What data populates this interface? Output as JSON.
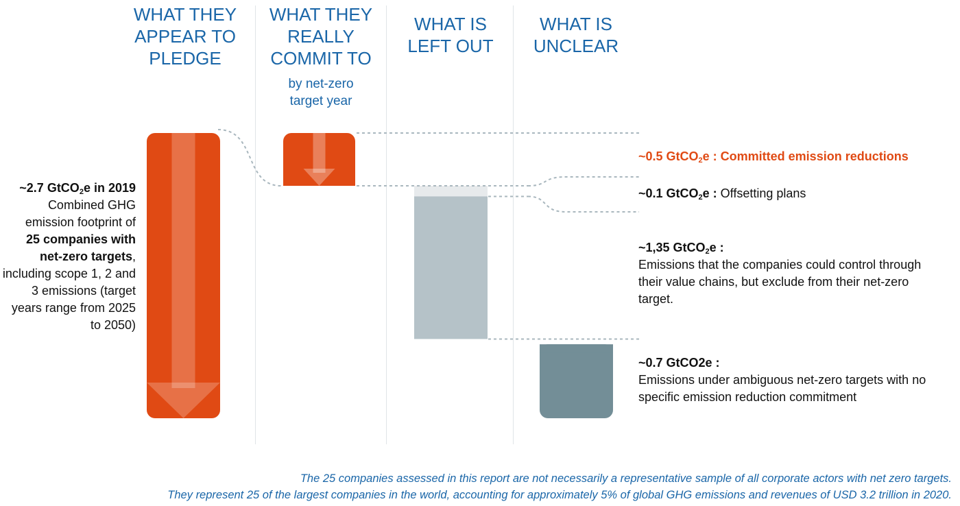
{
  "headers": [
    {
      "title": "WHAT THEY\nAPPEAR TO\nPLEDGE"
    },
    {
      "title": "WHAT THEY\nREALLY\nCOMMIT TO",
      "sub": "by net-zero\ntarget year"
    },
    {
      "title": "WHAT IS\nLEFT OUT"
    },
    {
      "title": "WHAT IS\nUNCLEAR"
    }
  ],
  "left_annotation": {
    "value": "~2.7 GtCO",
    "value_sub": "2",
    "value_rest": "e in 2019",
    "line1": "Combined GHG emission footprint of",
    "bold": "25 companies with net-zero targets",
    "line2": ", including scope 1, 2 and 3 emissions (target years range from 2025 to 2050)"
  },
  "labels": [
    {
      "value": "~0.5 GtCO",
      "sub": "2",
      "value_rest": "e : Committed emission reductions",
      "desc": ""
    },
    {
      "value": "~0.1 GtCO",
      "sub": "2",
      "value_rest": "e :",
      "desc": " Offsetting plans"
    },
    {
      "value": "~1,35 GtCO",
      "sub": "2",
      "value_rest": "e :",
      "desc": "Emissions that the companies could control through their value chains, but exclude from their net-zero target."
    },
    {
      "value": "~0.7 GtCO2e :",
      "sub": "",
      "value_rest": "",
      "desc": "Emissions under ambiguous net-zero targets with no specific emission reduction commitment"
    }
  ],
  "footnote": {
    "line1": "The 25 companies assessed in this report are not necessarily a representative sample of all corporate actors with net zero targets.",
    "line2": "They represent 25 of the largest companies in the world, accounting for approximately 5% of global GHG emissions and revenues of USD 3.2 trillion in 2020."
  },
  "colors": {
    "pledge": "#e04a14",
    "commit": "#e04a14",
    "offset": "#e7eaec",
    "left_out": "#b5c2c8",
    "unclear": "#738e97",
    "connector": "#a9b7be",
    "header": "#1a66a8"
  },
  "chart_data": {
    "type": "bar",
    "categories": [
      "WHAT THEY APPEAR TO PLEDGE",
      "WHAT THEY REALLY COMMIT TO",
      "WHAT IS LEFT OUT",
      "WHAT IS UNCLEAR"
    ],
    "unit": "GtCO2e",
    "series": [
      {
        "values": [
          2.7,
          0.5,
          0.1,
          0
        ]
      },
      {
        "values": [
          0,
          0,
          1.35,
          0
        ]
      },
      {
        "values": [
          0,
          0,
          0,
          0.7
        ]
      }
    ],
    "waterfall_start": [
      0,
      2.2,
      2.1,
      0
    ],
    "total": 2.7
  }
}
